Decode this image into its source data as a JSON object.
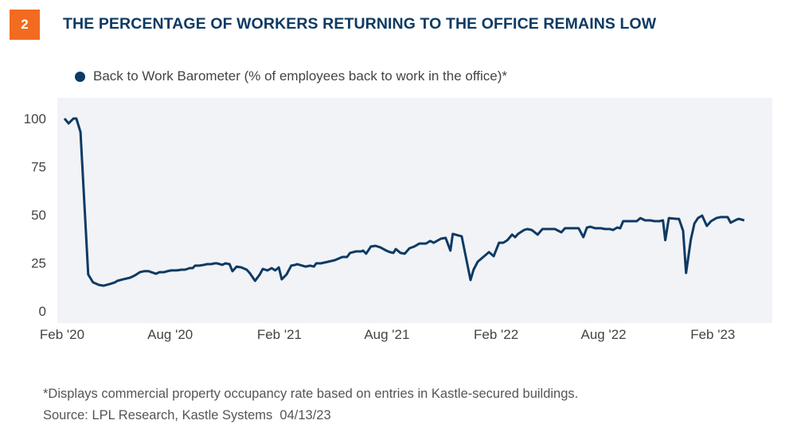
{
  "header": {
    "badge": "2",
    "title": "THE PERCENTAGE OF WORKERS RETURNING TO THE OFFICE REMAINS LOW"
  },
  "colors": {
    "accent": "#f26b21",
    "line": "#0e3a63",
    "plot_bg": "#f1f3f6"
  },
  "chart_data": {
    "type": "line",
    "title": "THE PERCENTAGE OF WORKERS RETURNING TO THE OFFICE REMAINS LOW",
    "xlabel": "",
    "ylabel": "",
    "ylim": [
      0,
      100
    ],
    "yticks": [
      "0",
      "25",
      "50",
      "75",
      "100"
    ],
    "xticks": [
      {
        "label": "Feb '20",
        "date": "2020-02-01"
      },
      {
        "label": "Aug '20",
        "date": "2020-08-01"
      },
      {
        "label": "Feb '21",
        "date": "2021-02-01"
      },
      {
        "label": "Aug '21",
        "date": "2021-08-01"
      },
      {
        "label": "Feb '22",
        "date": "2022-02-01"
      },
      {
        "label": "Aug '22",
        "date": "2022-08-01"
      },
      {
        "label": "Feb '23",
        "date": "2023-02-01"
      }
    ],
    "grid": false,
    "legend_position": "top-left",
    "series": [
      {
        "name": "Back to Work Barometer (% of employees back to work in the office)*",
        "color": "#0e3a63",
        "points": [
          [
            "2020-02-05",
            100
          ],
          [
            "2020-02-12",
            97.5
          ],
          [
            "2020-02-20",
            100
          ],
          [
            "2020-02-25",
            100
          ],
          [
            "2020-03-03",
            93
          ],
          [
            "2020-03-16",
            19
          ],
          [
            "2020-03-24",
            14.9
          ],
          [
            "2020-04-03",
            13.6
          ],
          [
            "2020-04-11",
            13.2
          ],
          [
            "2020-04-21",
            14
          ],
          [
            "2020-04-30",
            14.9
          ],
          [
            "2020-05-04",
            15.7
          ],
          [
            "2020-05-14",
            16.5
          ],
          [
            "2020-05-26",
            17.4
          ],
          [
            "2020-06-03",
            18.6
          ],
          [
            "2020-06-11",
            20.2
          ],
          [
            "2020-06-18",
            20.7
          ],
          [
            "2020-06-26",
            20.7
          ],
          [
            "2020-06-30",
            20.2
          ],
          [
            "2020-07-08",
            19.4
          ],
          [
            "2020-07-14",
            20.2
          ],
          [
            "2020-07-22",
            20.2
          ],
          [
            "2020-07-27",
            20.7
          ],
          [
            "2020-08-03",
            21.1
          ],
          [
            "2020-08-12",
            21.1
          ],
          [
            "2020-08-20",
            21.5
          ],
          [
            "2020-08-26",
            21.5
          ],
          [
            "2020-09-03",
            22.3
          ],
          [
            "2020-09-08",
            22.3
          ],
          [
            "2020-09-12",
            23.6
          ],
          [
            "2020-09-19",
            23.6
          ],
          [
            "2020-09-27",
            24
          ],
          [
            "2020-10-02",
            24.4
          ],
          [
            "2020-10-09",
            24.4
          ],
          [
            "2020-10-15",
            24.8
          ],
          [
            "2020-10-19",
            24.8
          ],
          [
            "2020-10-28",
            24
          ],
          [
            "2020-11-02",
            24.8
          ],
          [
            "2020-11-09",
            24.4
          ],
          [
            "2020-11-14",
            20.7
          ],
          [
            "2020-11-21",
            23.1
          ],
          [
            "2020-11-29",
            22.7
          ],
          [
            "2020-12-08",
            21.5
          ],
          [
            "2020-12-13",
            19.8
          ],
          [
            "2020-12-22",
            15.7
          ],
          [
            "2020-12-30",
            19
          ],
          [
            "2021-01-04",
            21.9
          ],
          [
            "2021-01-12",
            21.1
          ],
          [
            "2021-01-19",
            22.3
          ],
          [
            "2021-01-25",
            21.1
          ],
          [
            "2021-01-31",
            22.7
          ],
          [
            "2021-02-05",
            16.5
          ],
          [
            "2021-02-13",
            19
          ],
          [
            "2021-02-21",
            23.6
          ],
          [
            "2021-02-28",
            24
          ],
          [
            "2021-03-03",
            24.4
          ],
          [
            "2021-03-17",
            23.1
          ],
          [
            "2021-03-25",
            23.6
          ],
          [
            "2021-03-31",
            23.1
          ],
          [
            "2021-04-04",
            24.8
          ],
          [
            "2021-04-12",
            24.8
          ],
          [
            "2021-05-05",
            26.4
          ],
          [
            "2021-05-18",
            28.1
          ],
          [
            "2021-05-26",
            28.1
          ],
          [
            "2021-05-31",
            30.2
          ],
          [
            "2021-06-10",
            31
          ],
          [
            "2021-06-19",
            31
          ],
          [
            "2021-06-22",
            31.4
          ],
          [
            "2021-06-27",
            29.8
          ],
          [
            "2021-07-05",
            33.5
          ],
          [
            "2021-07-13",
            33.9
          ],
          [
            "2021-07-21",
            33.1
          ],
          [
            "2021-07-31",
            31.4
          ],
          [
            "2021-08-06",
            30.6
          ],
          [
            "2021-08-12",
            30.2
          ],
          [
            "2021-08-16",
            32.2
          ],
          [
            "2021-08-24",
            30.2
          ],
          [
            "2021-08-31",
            29.8
          ],
          [
            "2021-09-08",
            32.6
          ],
          [
            "2021-09-16",
            33.5
          ],
          [
            "2021-09-25",
            35.1
          ],
          [
            "2021-10-06",
            35.1
          ],
          [
            "2021-10-13",
            36.4
          ],
          [
            "2021-10-19",
            35.5
          ],
          [
            "2021-10-31",
            37.6
          ],
          [
            "2021-11-08",
            38
          ],
          [
            "2021-11-16",
            31.4
          ],
          [
            "2021-11-20",
            40.1
          ],
          [
            "2021-12-05",
            38.8
          ],
          [
            "2021-12-20",
            16.1
          ],
          [
            "2021-12-25",
            21.5
          ],
          [
            "2022-01-01",
            25.6
          ],
          [
            "2022-01-12",
            28.5
          ],
          [
            "2022-01-20",
            30.6
          ],
          [
            "2022-01-28",
            28.5
          ],
          [
            "2022-02-06",
            35.5
          ],
          [
            "2022-02-13",
            35.5
          ],
          [
            "2022-02-20",
            36.8
          ],
          [
            "2022-02-28",
            39.7
          ],
          [
            "2022-03-05",
            38.4
          ],
          [
            "2022-03-10",
            40.1
          ],
          [
            "2022-03-20",
            42.1
          ],
          [
            "2022-03-26",
            42.6
          ],
          [
            "2022-04-02",
            42.1
          ],
          [
            "2022-04-12",
            39.7
          ],
          [
            "2022-04-20",
            42.6
          ],
          [
            "2022-04-29",
            42.6
          ],
          [
            "2022-05-11",
            42.6
          ],
          [
            "2022-05-22",
            40.9
          ],
          [
            "2022-05-28",
            43
          ],
          [
            "2022-06-11",
            43
          ],
          [
            "2022-06-20",
            43
          ],
          [
            "2022-06-28",
            38.4
          ],
          [
            "2022-07-04",
            43.4
          ],
          [
            "2022-07-10",
            43.8
          ],
          [
            "2022-07-18",
            43
          ],
          [
            "2022-07-27",
            43
          ],
          [
            "2022-08-04",
            42.6
          ],
          [
            "2022-08-12",
            42.6
          ],
          [
            "2022-08-17",
            42.1
          ],
          [
            "2022-08-24",
            43.4
          ],
          [
            "2022-08-29",
            43
          ],
          [
            "2022-09-03",
            46.7
          ],
          [
            "2022-09-26",
            46.7
          ],
          [
            "2022-10-02",
            48.3
          ],
          [
            "2022-10-10",
            47.1
          ],
          [
            "2022-10-19",
            47.1
          ],
          [
            "2022-10-26",
            46.7
          ],
          [
            "2022-11-03",
            46.7
          ],
          [
            "2022-11-09",
            47.1
          ],
          [
            "2022-11-13",
            36.8
          ],
          [
            "2022-11-19",
            48.3
          ],
          [
            "2022-12-02",
            47.9
          ],
          [
            "2022-12-06",
            47.9
          ],
          [
            "2022-12-13",
            41.7
          ],
          [
            "2022-12-18",
            19.8
          ],
          [
            "2022-12-26",
            37.2
          ],
          [
            "2023-01-01",
            45.5
          ],
          [
            "2023-01-07",
            48.3
          ],
          [
            "2023-01-14",
            49.6
          ],
          [
            "2023-01-22",
            44.2
          ],
          [
            "2023-01-29",
            46.7
          ],
          [
            "2023-02-07",
            48.3
          ],
          [
            "2023-02-14",
            48.8
          ],
          [
            "2023-02-23",
            48.8
          ],
          [
            "2023-02-26",
            48.8
          ],
          [
            "2023-03-03",
            45.9
          ],
          [
            "2023-03-13",
            47.5
          ],
          [
            "2023-03-17",
            47.9
          ],
          [
            "2023-03-26",
            47.1
          ]
        ]
      }
    ]
  },
  "footer": {
    "note": "*Displays commercial property occupancy rate based on entries in Kastle-secured buildings.",
    "source": "Source: LPL Research, Kastle Systems  04/13/23"
  }
}
